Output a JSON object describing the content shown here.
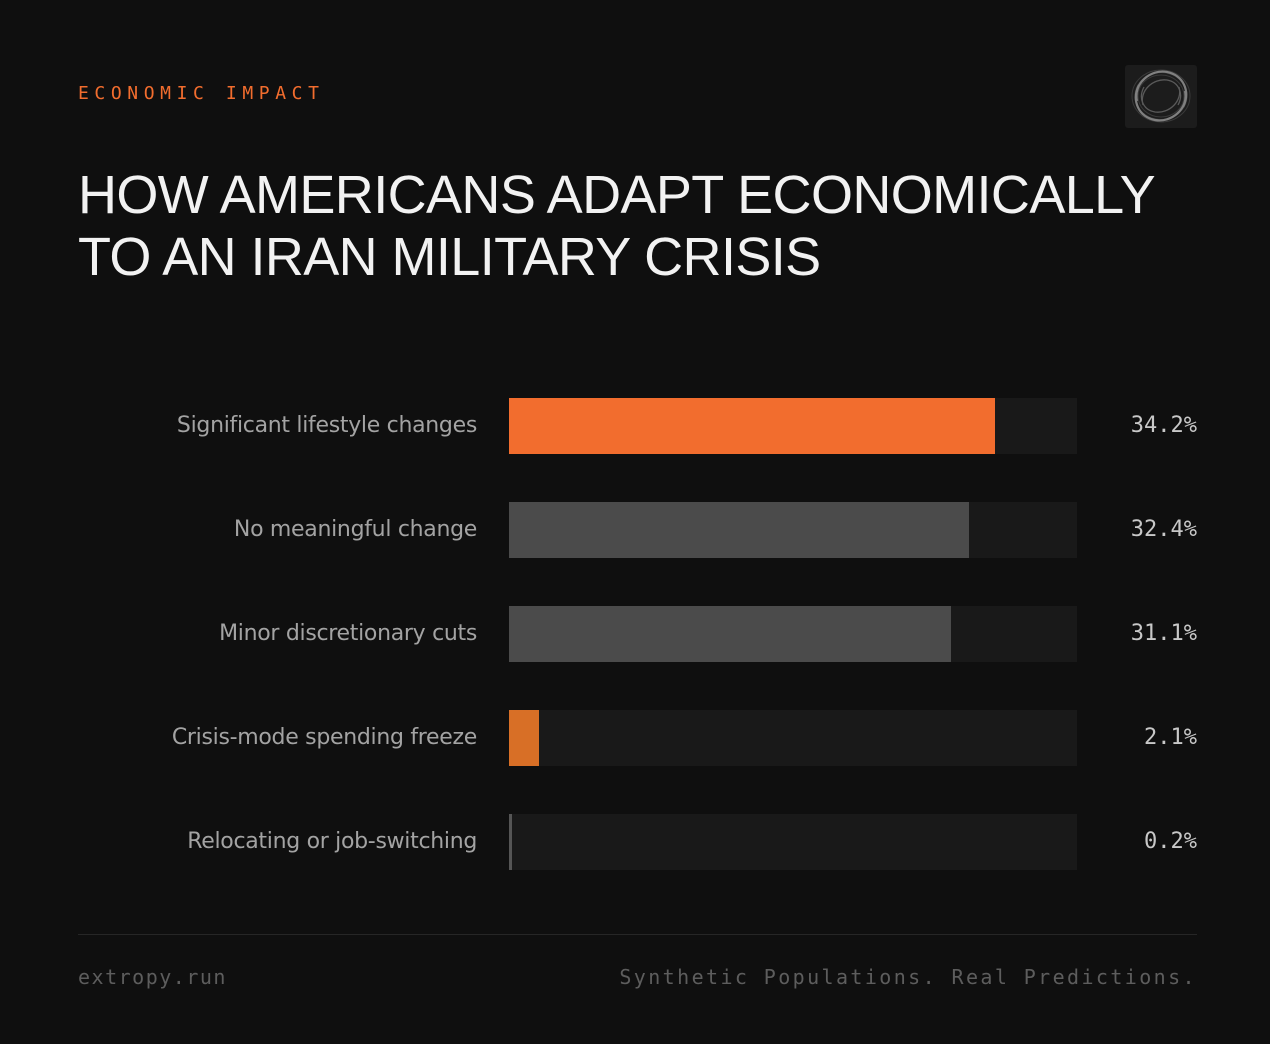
{
  "eyebrow": "ECONOMIC IMPACT",
  "title_lines": [
    "HOW AMERICANS ADAPT ECONOMICALLY",
    "TO AN IRAN MILITARY CRISIS"
  ],
  "logo_icon": "ring-logo-icon",
  "colors": {
    "accent": "#f26d2e",
    "accent_dark": "#d86f26",
    "neutral_bar": "#4b4b4b",
    "neutral_bar_small": "#555555",
    "track": "#191919"
  },
  "chart_data": {
    "type": "bar",
    "orientation": "horizontal",
    "title": "HOW AMERICANS ADAPT ECONOMICALLY TO AN IRAN MILITARY CRISIS",
    "categories": [
      "Significant lifestyle changes",
      "No meaningful change",
      "Minor discretionary cuts",
      "Crisis-mode spending freeze",
      "Relocating or job-switching"
    ],
    "values": [
      34.2,
      32.4,
      31.1,
      2.1,
      0.2
    ],
    "value_labels": [
      "34.2%",
      "32.4%",
      "31.1%",
      "2.1%",
      "0.2%"
    ],
    "unit": "%",
    "xlim": [
      0,
      40
    ],
    "bar_colors": [
      "#f26d2e",
      "#4b4b4b",
      "#4b4b4b",
      "#d86f26",
      "#555555"
    ],
    "grid": false,
    "legend": "none"
  },
  "footer": {
    "left": "extropy.run",
    "right": "Synthetic Populations. Real Predictions."
  }
}
